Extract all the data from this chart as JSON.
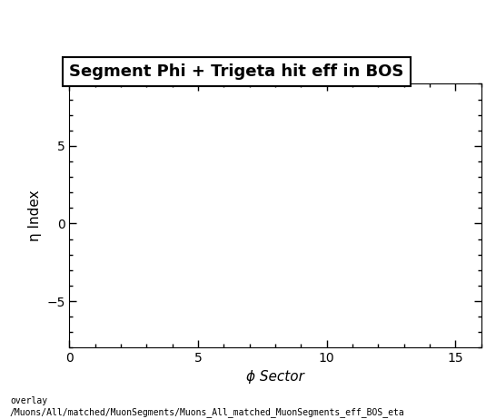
{
  "title": "Segment Phi + Trigeta hit eff in BOS",
  "xlabel": "ϕ Sector",
  "ylabel": "η Index",
  "xlim": [
    0,
    16
  ],
  "ylim": [
    -8,
    9
  ],
  "xticks": [
    0,
    5,
    10,
    15
  ],
  "yticks": [
    -5,
    0,
    5
  ],
  "background_color": "#ffffff",
  "plot_bg_color": "#ffffff",
  "title_fontsize": 13,
  "label_fontsize": 11,
  "tick_labelsize": 10,
  "footer_text": "overlay\n/Muons/All/matched/MuonSegments/Muons_All_matched_MuonSegments_eff_BOS_eta",
  "footer_fontsize": 7
}
